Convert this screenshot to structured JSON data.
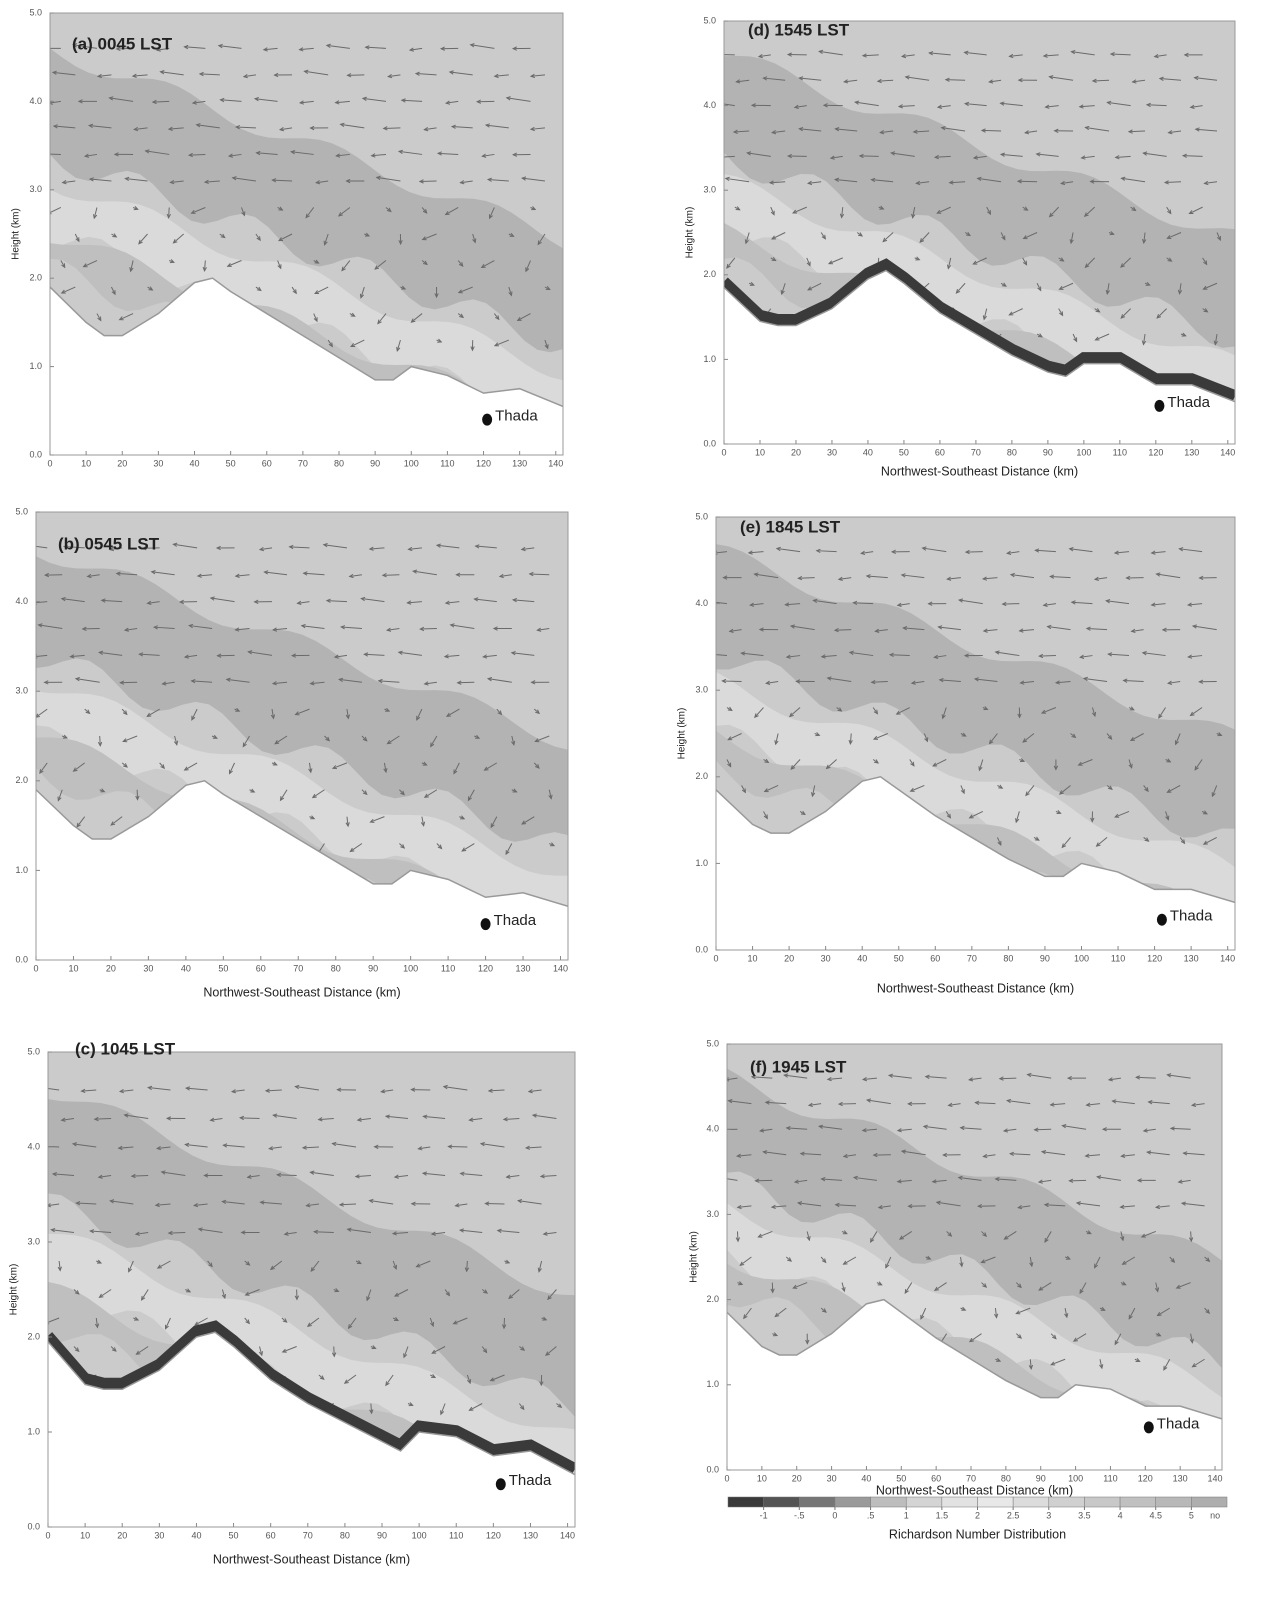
{
  "chart_data": [
    {
      "type": "cross-section",
      "title": "(a) 0045 LST",
      "y_label": "Height (km)",
      "xlim": [
        0,
        142
      ],
      "ylim": [
        0,
        5
      ],
      "xticks": [
        0,
        10,
        20,
        30,
        40,
        50,
        60,
        70,
        80,
        90,
        100,
        110,
        120,
        130,
        140
      ],
      "yticks": [
        {
          "value": 0,
          "label": "0.0"
        },
        {
          "value": 1,
          "label": "1.0"
        },
        {
          "value": 2,
          "label": "2.0"
        },
        {
          "value": 3,
          "label": "3.0"
        },
        {
          "value": 4,
          "label": "4.0"
        },
        {
          "value": 5,
          "label": "5.0"
        }
      ],
      "terrain": {
        "x": [
          0,
          10,
          15,
          20,
          30,
          40,
          45,
          50,
          60,
          70,
          80,
          90,
          95,
          100,
          110,
          120,
          130,
          142
        ],
        "values": [
          1.9,
          1.5,
          1.35,
          1.35,
          1.6,
          1.95,
          2.0,
          1.85,
          1.6,
          1.35,
          1.1,
          0.85,
          0.85,
          1.0,
          0.9,
          0.7,
          0.75,
          0.55
        ]
      },
      "annotations": [
        {
          "text": "Thada",
          "x": 121,
          "y": 0.4
        }
      ]
    },
    {
      "type": "cross-section",
      "title": "(b) 0545 LST",
      "x_label": "Northwest-Southeast Distance (km)",
      "xlim": [
        0,
        142
      ],
      "ylim": [
        0,
        5
      ],
      "xticks": [
        0,
        10,
        20,
        30,
        40,
        50,
        60,
        70,
        80,
        90,
        100,
        110,
        120,
        130,
        140
      ],
      "yticks": [
        {
          "value": 0,
          "label": "0.0"
        },
        {
          "value": 1,
          "label": "1.0"
        },
        {
          "value": 2,
          "label": "2.0"
        },
        {
          "value": 3,
          "label": "3.0"
        },
        {
          "value": 4,
          "label": "4.0"
        },
        {
          "value": 5,
          "label": "5.0"
        }
      ],
      "terrain": {
        "x": [
          0,
          10,
          15,
          20,
          30,
          40,
          45,
          50,
          60,
          70,
          80,
          90,
          95,
          100,
          110,
          120,
          130,
          142
        ],
        "values": [
          1.9,
          1.5,
          1.35,
          1.35,
          1.6,
          1.95,
          2.0,
          1.85,
          1.6,
          1.35,
          1.1,
          0.85,
          0.85,
          1.0,
          0.9,
          0.7,
          0.75,
          0.6
        ]
      },
      "annotations": [
        {
          "text": "Thada",
          "x": 120,
          "y": 0.4
        }
      ]
    },
    {
      "type": "cross-section",
      "title": "(c) 1045 LST",
      "x_label": "Northwest-Southeast Distance (km)",
      "y_label": "Height (km)",
      "xlim": [
        0,
        142
      ],
      "ylim": [
        0,
        5
      ],
      "surface_layer": true,
      "xticks": [
        0,
        10,
        20,
        30,
        40,
        50,
        60,
        70,
        80,
        90,
        100,
        110,
        120,
        130,
        140
      ],
      "yticks": [
        {
          "value": 0,
          "label": "0.0"
        },
        {
          "value": 1,
          "label": "1.0"
        },
        {
          "value": 2,
          "label": "2.0"
        },
        {
          "value": 3,
          "label": "3.0"
        },
        {
          "value": 4,
          "label": "4.0"
        },
        {
          "value": 5,
          "label": "5.0"
        }
      ],
      "terrain": {
        "x": [
          0,
          10,
          15,
          20,
          30,
          40,
          45,
          50,
          60,
          70,
          80,
          90,
          95,
          100,
          110,
          120,
          130,
          142
        ],
        "values": [
          1.95,
          1.5,
          1.45,
          1.45,
          1.65,
          2.0,
          2.05,
          1.9,
          1.55,
          1.3,
          1.1,
          0.9,
          0.8,
          1.0,
          0.95,
          0.75,
          0.8,
          0.55
        ]
      },
      "annotations": [
        {
          "text": "Thada",
          "x": 122,
          "y": 0.45
        }
      ]
    },
    {
      "type": "cross-section",
      "title": "(d) 1545 LST",
      "x_label": "Northwest-Southeast Distance (km)",
      "y_label": "Height (km)",
      "xlim": [
        0,
        142
      ],
      "ylim": [
        0,
        5
      ],
      "surface_layer": true,
      "xticks": [
        0,
        10,
        20,
        30,
        40,
        50,
        60,
        70,
        80,
        90,
        100,
        110,
        120,
        130,
        140
      ],
      "yticks": [
        {
          "value": 0,
          "label": "0.0"
        },
        {
          "value": 1,
          "label": "1.0"
        },
        {
          "value": 2,
          "label": "2.0"
        },
        {
          "value": 3,
          "label": "3.0"
        },
        {
          "value": 4,
          "label": "4.0"
        },
        {
          "value": 5,
          "label": "5.0"
        }
      ],
      "terrain": {
        "x": [
          0,
          10,
          15,
          20,
          30,
          40,
          45,
          50,
          60,
          70,
          80,
          90,
          95,
          100,
          110,
          120,
          130,
          142
        ],
        "values": [
          1.85,
          1.45,
          1.4,
          1.4,
          1.6,
          1.95,
          2.05,
          1.9,
          1.55,
          1.3,
          1.05,
          0.85,
          0.8,
          0.95,
          0.95,
          0.7,
          0.7,
          0.5
        ]
      },
      "annotations": [
        {
          "text": "Thada",
          "x": 121,
          "y": 0.45
        }
      ]
    },
    {
      "type": "cross-section",
      "title": "(e) 1845 LST",
      "x_label": "Northwest-Southeast Distance (km)",
      "y_label": "Height (km)",
      "xlim": [
        0,
        142
      ],
      "ylim": [
        0,
        5
      ],
      "xticks": [
        0,
        10,
        20,
        30,
        40,
        50,
        60,
        70,
        80,
        90,
        100,
        110,
        120,
        130,
        140
      ],
      "yticks": [
        {
          "value": 0,
          "label": "0.0"
        },
        {
          "value": 1,
          "label": "1.0"
        },
        {
          "value": 2,
          "label": "2.0"
        },
        {
          "value": 3,
          "label": "3.0"
        },
        {
          "value": 4,
          "label": "4.0"
        },
        {
          "value": 5,
          "label": "5.0"
        }
      ],
      "terrain": {
        "x": [
          0,
          10,
          15,
          20,
          30,
          40,
          45,
          50,
          60,
          70,
          80,
          90,
          95,
          100,
          110,
          120,
          130,
          142
        ],
        "values": [
          1.85,
          1.45,
          1.35,
          1.35,
          1.6,
          1.95,
          2.0,
          1.85,
          1.55,
          1.3,
          1.05,
          0.85,
          0.85,
          1.0,
          0.9,
          0.7,
          0.7,
          0.55
        ]
      },
      "annotations": [
        {
          "text": "Thada",
          "x": 122,
          "y": 0.35
        }
      ]
    },
    {
      "type": "cross-section",
      "title": "(f) 1945 LST",
      "x_label": "Northwest-Southeast Distance (km)",
      "y_label": "Height (km)",
      "xlim": [
        0,
        142
      ],
      "ylim": [
        0,
        5
      ],
      "xticks": [
        0,
        10,
        20,
        30,
        40,
        50,
        60,
        70,
        80,
        90,
        100,
        110,
        120,
        130,
        140
      ],
      "yticks": [
        {
          "value": 0,
          "label": "0.0"
        },
        {
          "value": 1,
          "label": "1.0"
        },
        {
          "value": 2,
          "label": "2.0"
        },
        {
          "value": 3,
          "label": "3.0"
        },
        {
          "value": 4,
          "label": "4.0"
        },
        {
          "value": 5,
          "label": "5.0"
        }
      ],
      "terrain": {
        "x": [
          0,
          10,
          15,
          20,
          30,
          40,
          45,
          50,
          60,
          70,
          80,
          90,
          95,
          100,
          110,
          120,
          130,
          142
        ],
        "values": [
          1.85,
          1.45,
          1.35,
          1.35,
          1.6,
          1.95,
          2.0,
          1.85,
          1.55,
          1.3,
          1.05,
          0.85,
          0.85,
          1.0,
          0.95,
          0.75,
          0.75,
          0.6
        ]
      },
      "annotations": [
        {
          "text": "Thada",
          "x": 121,
          "y": 0.5
        }
      ],
      "colorbar": {
        "label": "Richardson Number Distribution",
        "colors": [
          "#3a3a3a",
          "#545454",
          "#767676",
          "#9a9a9a",
          "#bdbdbd",
          "#d4d4d4",
          "#e2e2e2",
          "#e8e8e8",
          "#dcdcdc",
          "#d0d0d0",
          "#c8c8c8",
          "#c0c0c0",
          "#b8b8b8",
          "#aeaeae"
        ],
        "ticks": [
          -1,
          {
            "value": -0.5,
            "label": "-.5"
          },
          0,
          {
            "value": 0.5,
            "label": ".5"
          },
          1,
          1.5,
          2,
          2.5,
          3,
          3.5,
          4,
          4.5,
          5
        ],
        "no_data_label": "no"
      }
    }
  ]
}
